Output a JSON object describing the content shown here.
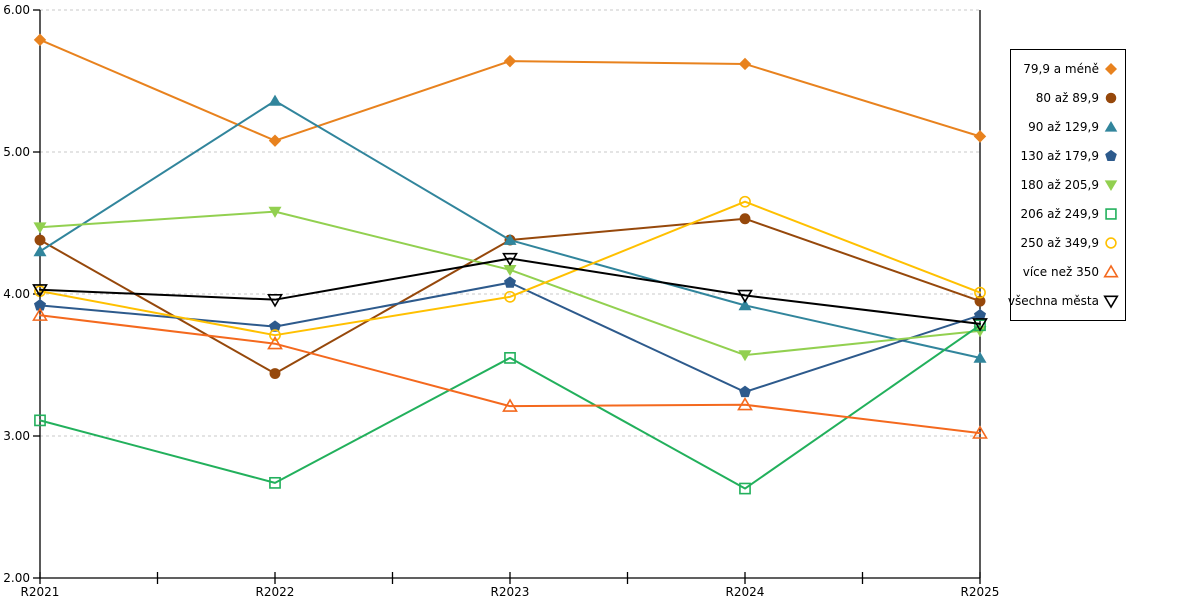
{
  "chart_data": {
    "type": "line",
    "title": "",
    "xlabel": "",
    "ylabel": "",
    "categories": [
      "R2021",
      "R2022",
      "R2023",
      "R2024",
      "R2025"
    ],
    "series": [
      {
        "name": "79,9 a méně",
        "marker": "diamond-filled",
        "color": "#E8821E",
        "values": [
          5.79,
          5.08,
          5.64,
          5.62,
          5.11
        ]
      },
      {
        "name": "80 až 89,9",
        "marker": "circle-filled",
        "color": "#96480B",
        "values": [
          4.38,
          3.44,
          4.38,
          4.53,
          3.95
        ]
      },
      {
        "name": "90 až 129,9",
        "marker": "triangle-up-filled",
        "color": "#31859C",
        "values": [
          4.3,
          5.36,
          4.38,
          3.92,
          3.55
        ]
      },
      {
        "name": "130 až 179,9",
        "marker": "pentagon-filled",
        "color": "#2D5A8C",
        "values": [
          3.92,
          3.77,
          4.08,
          3.31,
          3.85
        ]
      },
      {
        "name": "180 až 205,9",
        "marker": "triangle-down-filled",
        "color": "#92D050",
        "values": [
          4.47,
          4.58,
          4.17,
          3.57,
          3.74
        ]
      },
      {
        "name": "206 až 249,9",
        "marker": "square-hollow",
        "color": "#22B05C",
        "values": [
          3.11,
          2.67,
          3.55,
          2.63,
          3.78
        ]
      },
      {
        "name": "250 až 349,9",
        "marker": "circle-hollow",
        "color": "#FFC000",
        "values": [
          4.02,
          3.71,
          3.98,
          4.65,
          4.01
        ]
      },
      {
        "name": "více než 350",
        "marker": "triangle-up-hollow",
        "color": "#F4691E",
        "values": [
          3.85,
          3.65,
          3.21,
          3.22,
          3.02
        ]
      },
      {
        "name": "všechna města",
        "marker": "triangle-down-hollow",
        "color": "#000000",
        "values": [
          4.03,
          3.96,
          4.25,
          3.99,
          3.79
        ]
      }
    ],
    "ylim": [
      2,
      6
    ],
    "yticks": [
      6,
      5,
      4,
      3,
      2
    ],
    "ytick_labels": [
      "6.00",
      "5.00",
      "4.00",
      "3.00",
      "2.00"
    ],
    "grid": "horizontal-dashed",
    "grid_color": "#C8C8C8",
    "axis_color": "#000000",
    "legend_position": "right"
  }
}
